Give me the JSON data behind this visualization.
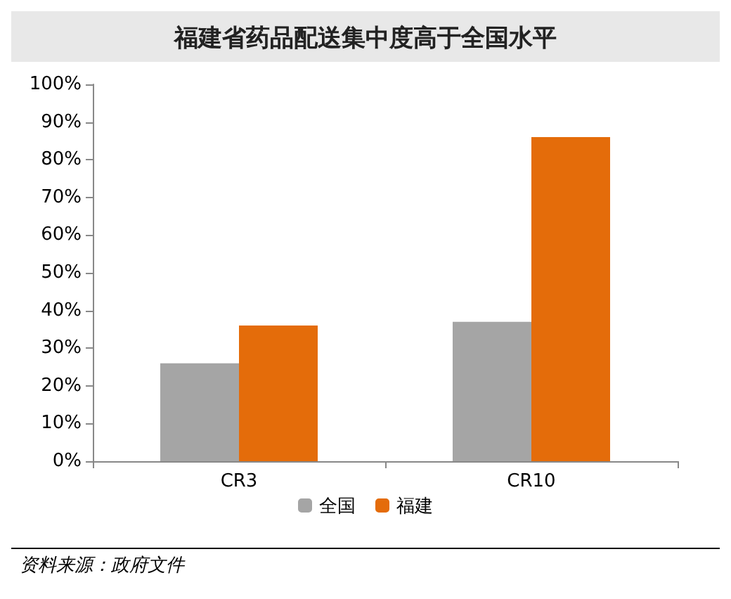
{
  "chart_data": {
    "type": "bar",
    "title": "福建省药品配送集中度高于全国水平",
    "categories": [
      "CR3",
      "CR10"
    ],
    "series": [
      {
        "name": "全国",
        "color": "#a5a5a5",
        "values": [
          26,
          37
        ]
      },
      {
        "name": "福建",
        "color": "#e46c0a",
        "values": [
          36,
          86
        ]
      }
    ],
    "ylim": [
      0,
      100
    ],
    "yticks": [
      {
        "value": 0,
        "label": "0%"
      },
      {
        "value": 10,
        "label": "10%"
      },
      {
        "value": 20,
        "label": "20%"
      },
      {
        "value": 30,
        "label": "30%"
      },
      {
        "value": 40,
        "label": "40%"
      },
      {
        "value": 50,
        "label": "50%"
      },
      {
        "value": 60,
        "label": "60%"
      },
      {
        "value": 70,
        "label": "70%"
      },
      {
        "value": 80,
        "label": "80%"
      },
      {
        "value": 90,
        "label": "90%"
      },
      {
        "value": 100,
        "label": "100%"
      }
    ],
    "grid": false,
    "legend": "bottom",
    "annotations": [
      "资料来源：政府文件"
    ]
  }
}
